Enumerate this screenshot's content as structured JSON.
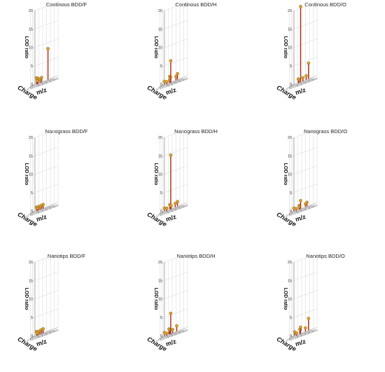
{
  "figure": {
    "ylabel": "LOD ratio",
    "xlabel": "m/z",
    "zlabel": "Charge",
    "z_ticks": [
      "1",
      "2",
      "3"
    ],
    "x_ticks": [
      "500",
      "1000",
      "1500",
      "2000",
      "2500",
      "3000",
      "3500"
    ]
  },
  "colors": {
    "stem": "#b02a12",
    "marker": "#d6a32a",
    "grid": "#c9c9c9",
    "artifact": "#f0a8d8"
  },
  "chart_data": [
    {
      "type": "scatter",
      "title": "Continous BDD/F",
      "ylim": [
        0,
        20
      ],
      "yticks": [
        0,
        5,
        10,
        15,
        20
      ],
      "points": [
        {
          "x": 800,
          "z": 1,
          "y": 1.6
        },
        {
          "x": 1200,
          "z": 2,
          "y": 1.0
        },
        {
          "x": 1250,
          "z": 2,
          "y": 1.4
        },
        {
          "x": 1500,
          "z": 2,
          "y": 1.0
        },
        {
          "x": 1700,
          "z": 2,
          "y": 1.3
        },
        {
          "x": 1350,
          "z": 3,
          "y": 0.9
        },
        {
          "x": 2300,
          "z": 1,
          "y": 8.4
        }
      ]
    },
    {
      "type": "scatter",
      "title": "Continous BDD/H",
      "ylim": [
        0,
        20
      ],
      "yticks": [
        0,
        5,
        10,
        15,
        20
      ],
      "points": [
        {
          "x": 600,
          "z": 1,
          "y": 0.8
        },
        {
          "x": 1300,
          "z": 1,
          "y": 1.6
        },
        {
          "x": 1500,
          "z": 2,
          "y": 0.8
        },
        {
          "x": 1600,
          "z": 2,
          "y": 1.4
        },
        {
          "x": 1650,
          "z": 2,
          "y": 5.9
        },
        {
          "x": 2100,
          "z": 1,
          "y": 1.0
        },
        {
          "x": 2300,
          "z": 1,
          "y": 1.6
        },
        {
          "x": 1350,
          "z": 3,
          "y": 0.7
        }
      ]
    },
    {
      "type": "scatter",
      "title": "Continous BDD/O",
      "ylim": [
        0,
        20
      ],
      "yticks": [
        0,
        5,
        10,
        15,
        20
      ],
      "points": [
        {
          "x": 1400,
          "z": 2,
          "y": 1.1
        },
        {
          "x": 1500,
          "z": 2,
          "y": 0.9
        },
        {
          "x": 1700,
          "z": 2,
          "y": 20.6
        },
        {
          "x": 2000,
          "z": 2,
          "y": 1.0
        },
        {
          "x": 2200,
          "z": 1,
          "y": 1.1
        },
        {
          "x": 2500,
          "z": 1,
          "y": 4.3
        }
      ]
    },
    {
      "type": "scatter",
      "title": "Nanograss BDD/F",
      "ylim": [
        0,
        20
      ],
      "yticks": [
        0,
        5,
        10,
        15,
        20
      ],
      "points": [
        {
          "x": 800,
          "z": 1,
          "y": 0.9
        },
        {
          "x": 1300,
          "z": 2,
          "y": 1.0
        },
        {
          "x": 1500,
          "z": 2,
          "y": 0.9
        },
        {
          "x": 1700,
          "z": 2,
          "y": 1.0
        },
        {
          "x": 1900,
          "z": 2,
          "y": 1.1
        },
        {
          "x": 1350,
          "z": 3,
          "y": 0.8
        }
      ]
    },
    {
      "type": "scatter",
      "title": "Nanograss BDD/H",
      "ylim": [
        0,
        20
      ],
      "yticks": [
        0,
        5,
        10,
        15,
        20
      ],
      "points": [
        {
          "x": 600,
          "z": 1,
          "y": 0.8
        },
        {
          "x": 1300,
          "z": 1,
          "y": 1.2
        },
        {
          "x": 1650,
          "z": 2,
          "y": 14.7
        },
        {
          "x": 1700,
          "z": 2,
          "y": 0.9
        },
        {
          "x": 2000,
          "z": 1,
          "y": 1.0
        },
        {
          "x": 2300,
          "z": 1,
          "y": 1.3
        },
        {
          "x": 1350,
          "z": 3,
          "y": 0.8
        }
      ]
    },
    {
      "type": "scatter",
      "title": "Nanograss BDD/O",
      "ylim": [
        0,
        20
      ],
      "yticks": [
        0,
        5,
        10,
        15,
        20
      ],
      "points": [
        {
          "x": 600,
          "z": 1,
          "y": 0.8
        },
        {
          "x": 1300,
          "z": 1,
          "y": 1.0
        },
        {
          "x": 1500,
          "z": 2,
          "y": 0.9
        },
        {
          "x": 1700,
          "z": 2,
          "y": 2.3
        },
        {
          "x": 2100,
          "z": 1,
          "y": 0.8
        },
        {
          "x": 2300,
          "z": 1,
          "y": 1.1
        },
        {
          "x": 1350,
          "z": 3,
          "y": 0.7
        }
      ]
    },
    {
      "type": "scatter",
      "title": "Nanotips BDD/F",
      "ylim": [
        0,
        20
      ],
      "yticks": [
        0,
        5,
        10,
        15,
        20
      ],
      "points": [
        {
          "x": 800,
          "z": 1,
          "y": 1.0
        },
        {
          "x": 1300,
          "z": 2,
          "y": 0.9
        },
        {
          "x": 1500,
          "z": 2,
          "y": 1.0
        },
        {
          "x": 1700,
          "z": 2,
          "y": 1.1
        },
        {
          "x": 1900,
          "z": 2,
          "y": 1.2
        },
        {
          "x": 1350,
          "z": 3,
          "y": 0.7
        }
      ]
    },
    {
      "type": "scatter",
      "title": "Nanotips BDD/H",
      "ylim": [
        0,
        20
      ],
      "yticks": [
        0,
        5,
        10,
        15,
        20
      ],
      "points": [
        {
          "x": 600,
          "z": 1,
          "y": 0.9
        },
        {
          "x": 1200,
          "z": 1,
          "y": 1.4
        },
        {
          "x": 1550,
          "z": 2,
          "y": 1.2
        },
        {
          "x": 1650,
          "z": 2,
          "y": 5.6
        },
        {
          "x": 1900,
          "z": 2,
          "y": 1.0
        },
        {
          "x": 2200,
          "z": 1,
          "y": 1.5
        },
        {
          "x": 1350,
          "z": 3,
          "y": 0.7
        }
      ]
    },
    {
      "type": "scatter",
      "title": "Nanotips BDD/O",
      "ylim": [
        0,
        20
      ],
      "yticks": [
        0,
        5,
        10,
        15,
        20
      ],
      "points": [
        {
          "x": 700,
          "z": 1,
          "y": 1.0
        },
        {
          "x": 1400,
          "z": 1,
          "y": 1.1
        },
        {
          "x": 1600,
          "z": 2,
          "y": 1.3
        },
        {
          "x": 1700,
          "z": 2,
          "y": 1.8
        },
        {
          "x": 2100,
          "z": 1,
          "y": 1.0
        },
        {
          "x": 2500,
          "z": 1,
          "y": 3.3
        },
        {
          "x": 1400,
          "z": 3,
          "y": 0.7
        }
      ]
    }
  ]
}
